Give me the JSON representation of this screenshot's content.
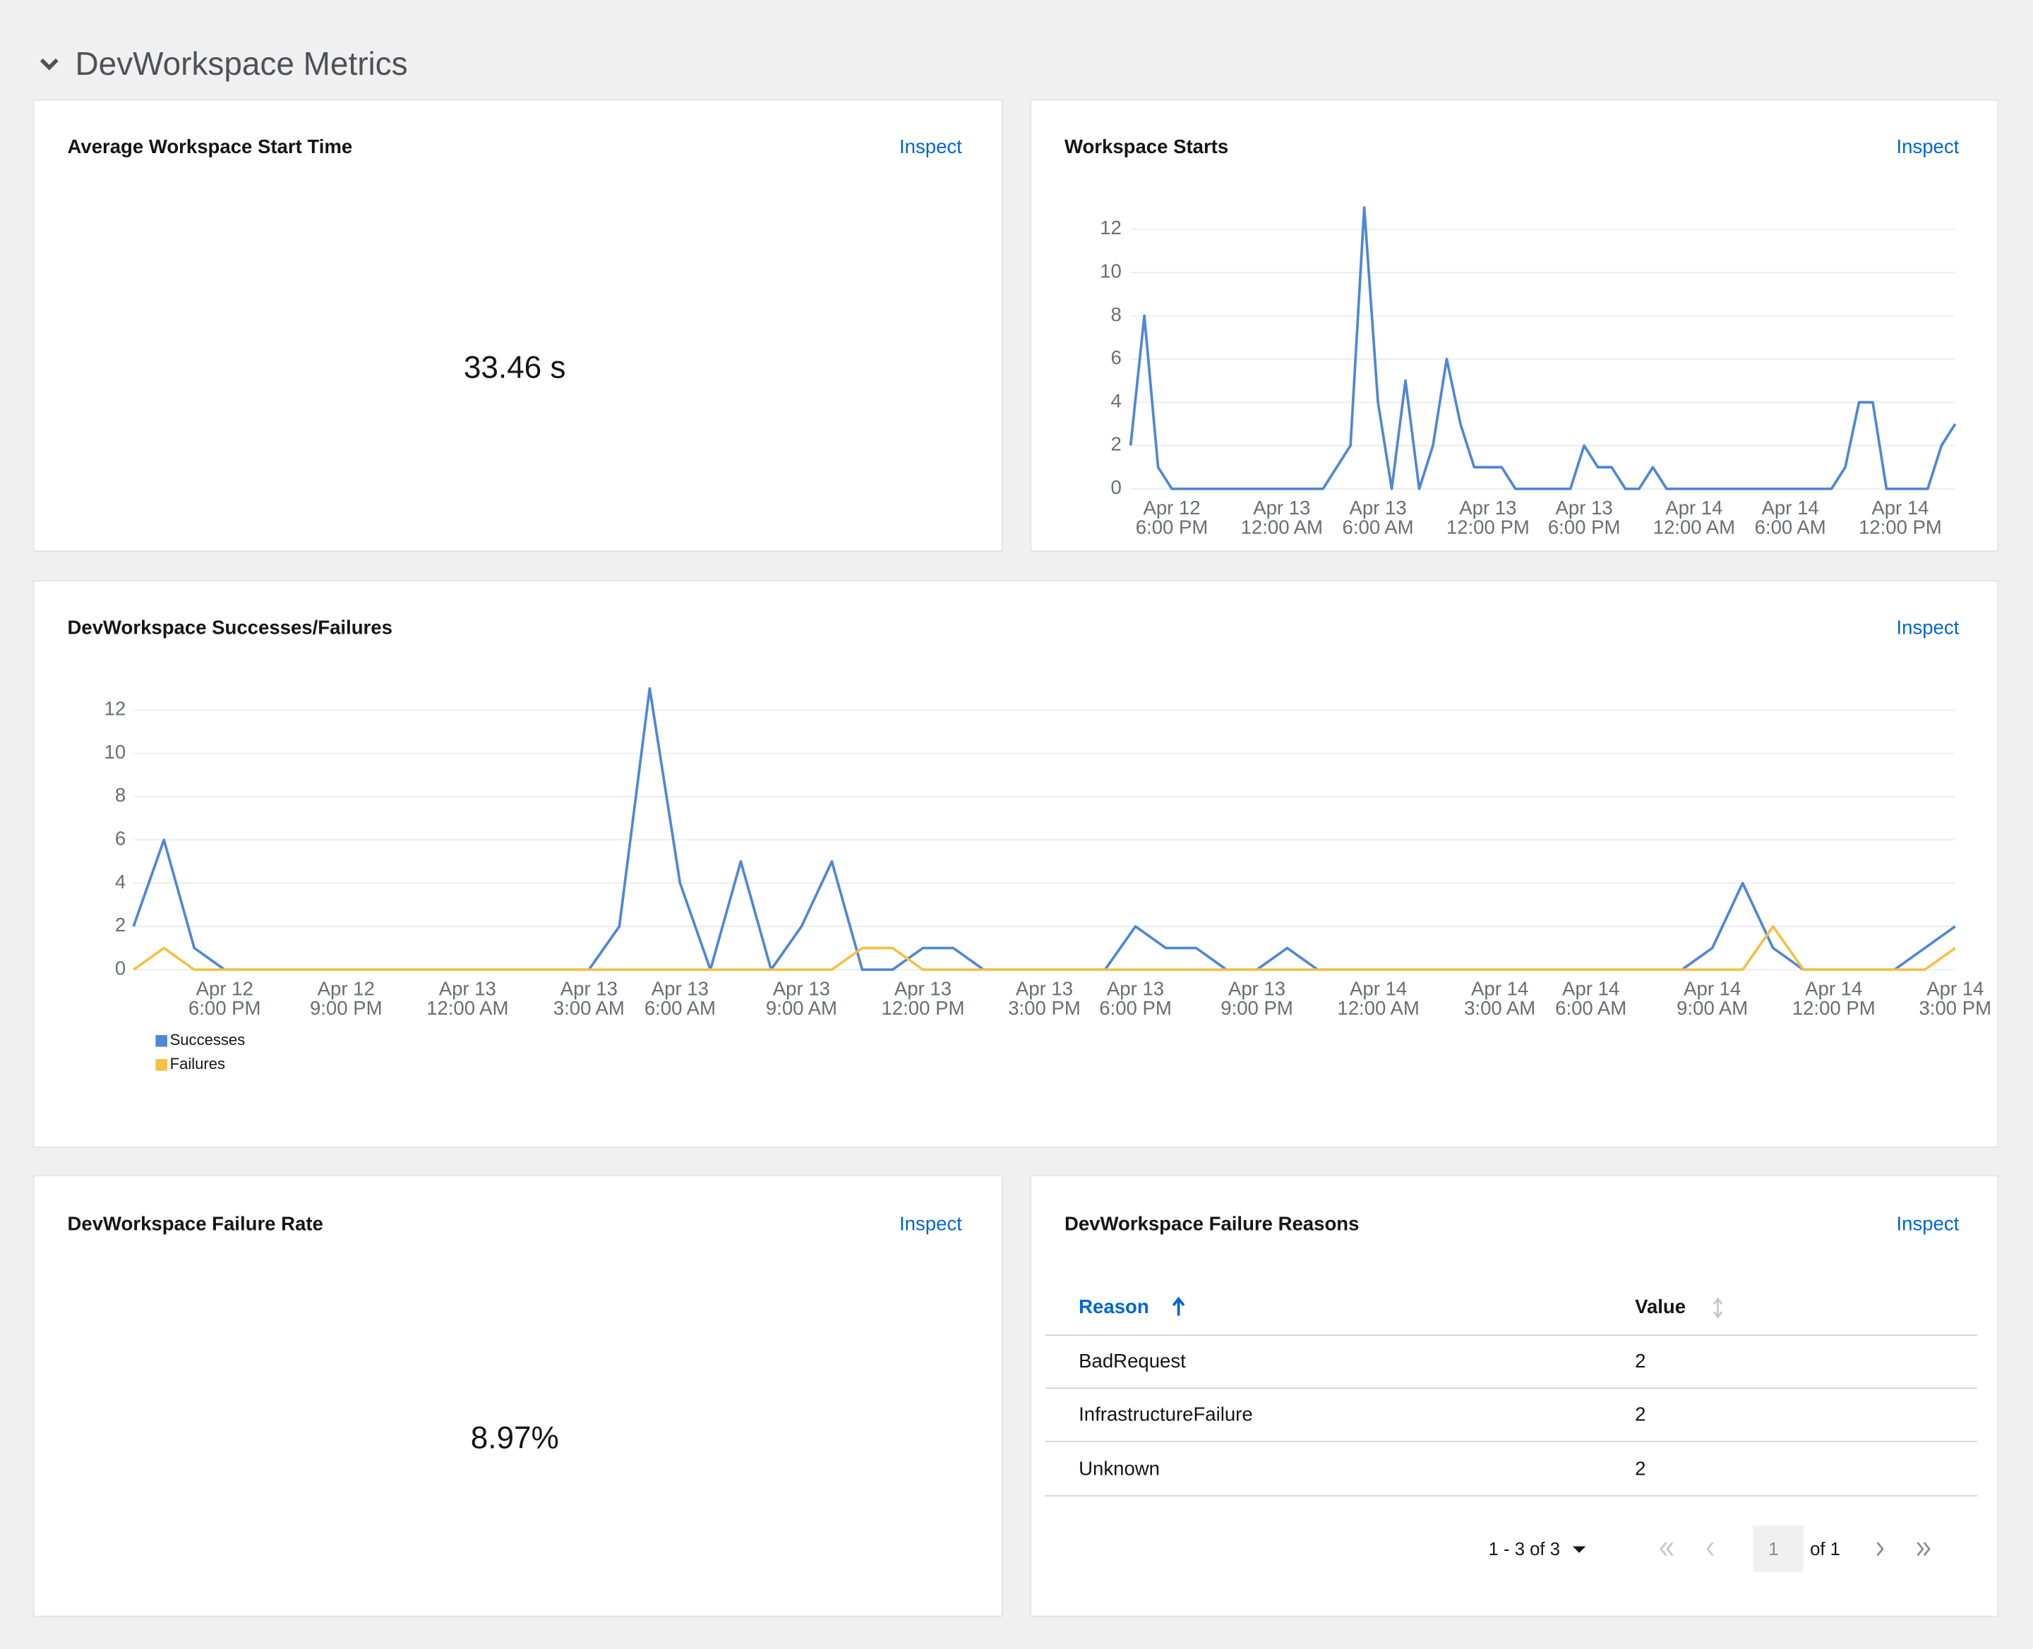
{
  "section_title": "DevWorkspace Metrics",
  "start_time": {
    "title": "Average Workspace Start Time",
    "action": "Inspect",
    "value": "33.46 s"
  },
  "chart_data": [
    {
      "type": "line",
      "title": "Workspace Starts",
      "action": "Inspect",
      "categories": [
        null,
        null,
        null,
        [
          "Apr 12",
          "6:00 PM"
        ],
        null,
        null,
        null,
        null,
        null,
        null,
        null,
        [
          "Apr 13",
          "12:00 AM"
        ],
        null,
        null,
        null,
        null,
        null,
        null,
        [
          "Apr 13",
          "6:00 AM"
        ],
        null,
        null,
        null,
        null,
        null,
        null,
        null,
        [
          "Apr 13",
          "12:00 PM"
        ],
        null,
        null,
        null,
        null,
        null,
        null,
        [
          "Apr 13",
          "6:00 PM"
        ],
        null,
        null,
        null,
        null,
        null,
        null,
        null,
        [
          "Apr 14",
          "12:00 AM"
        ],
        null,
        null,
        null,
        null,
        null,
        null,
        [
          "Apr 14",
          "6:00 AM"
        ],
        null,
        null,
        null,
        null,
        null,
        null,
        null,
        [
          "Apr 14",
          "12:00 PM"
        ],
        null,
        null,
        null,
        null
      ],
      "values": [
        2,
        8,
        1,
        0,
        0,
        0,
        0,
        0,
        0,
        0,
        0,
        0,
        0,
        0,
        0,
        1,
        2,
        13,
        4,
        0,
        5,
        0,
        2,
        6,
        3,
        1,
        1,
        1,
        0,
        0,
        0,
        0,
        0,
        2,
        1,
        1,
        0,
        0,
        1,
        0,
        0,
        0,
        0,
        0,
        0,
        0,
        0,
        0,
        0,
        0,
        0,
        0,
        1,
        4,
        4,
        0,
        0,
        0,
        0,
        2,
        3
      ],
      "color": "#4f87d6",
      "ylim": [
        0,
        13
      ],
      "yticks": [
        0,
        2,
        4,
        6,
        8,
        10,
        12
      ],
      "grid": true
    },
    {
      "type": "line",
      "title": "DevWorkspace Successes/Failures",
      "action": "Inspect",
      "categories": [
        null,
        null,
        null,
        [
          "Apr 12",
          "6:00 PM"
        ],
        null,
        null,
        null,
        [
          "Apr 12",
          "9:00 PM"
        ],
        null,
        null,
        null,
        [
          "Apr 13",
          "12:00 AM"
        ],
        null,
        null,
        null,
        [
          "Apr 13",
          "3:00 AM"
        ],
        null,
        null,
        [
          "Apr 13",
          "6:00 AM"
        ],
        null,
        null,
        null,
        [
          "Apr 13",
          "9:00 AM"
        ],
        null,
        null,
        null,
        [
          "Apr 13",
          "12:00 PM"
        ],
        null,
        null,
        null,
        [
          "Apr 13",
          "3:00 PM"
        ],
        null,
        null,
        [
          "Apr 13",
          "6:00 PM"
        ],
        null,
        null,
        null,
        [
          "Apr 13",
          "9:00 PM"
        ],
        null,
        null,
        null,
        [
          "Apr 14",
          "12:00 AM"
        ],
        null,
        null,
        null,
        [
          "Apr 14",
          "3:00 AM"
        ],
        null,
        null,
        [
          "Apr 14",
          "6:00 AM"
        ],
        null,
        null,
        null,
        [
          "Apr 14",
          "9:00 AM"
        ],
        null,
        null,
        null,
        [
          "Apr 14",
          "12:00 PM"
        ],
        null,
        null,
        null,
        [
          "Apr 14",
          "3:00 PM"
        ]
      ],
      "series": [
        {
          "name": "Successes",
          "color": "#4f87d6",
          "values": [
            2,
            6,
            1,
            0,
            0,
            0,
            0,
            0,
            0,
            0,
            0,
            0,
            0,
            0,
            0,
            0,
            2,
            13,
            4,
            0,
            5,
            0,
            2,
            5,
            0,
            0,
            1,
            1,
            0,
            0,
            0,
            0,
            0,
            2,
            1,
            1,
            0,
            0,
            1,
            0,
            0,
            0,
            0,
            0,
            0,
            0,
            0,
            0,
            0,
            0,
            0,
            0,
            1,
            4,
            1,
            0,
            0,
            0,
            0,
            1,
            2
          ]
        },
        {
          "name": "Failures",
          "color": "#f4c145",
          "values": [
            0,
            1,
            0,
            0,
            0,
            0,
            0,
            0,
            0,
            0,
            0,
            0,
            0,
            0,
            0,
            0,
            0,
            0,
            0,
            0,
            0,
            0,
            0,
            0,
            1,
            1,
            0,
            0,
            0,
            0,
            0,
            0,
            0,
            0,
            0,
            0,
            0,
            0,
            0,
            0,
            0,
            0,
            0,
            0,
            0,
            0,
            0,
            0,
            0,
            0,
            0,
            0,
            0,
            0,
            2,
            0,
            0,
            0,
            0,
            0,
            1
          ]
        }
      ],
      "ylim": [
        0,
        13
      ],
      "yticks": [
        0,
        2,
        4,
        6,
        8,
        10,
        12
      ],
      "grid": true,
      "legend": "bottom-left"
    }
  ],
  "failure_rate": {
    "title": "DevWorkspace Failure Rate",
    "action": "Inspect",
    "value": "8.97%"
  },
  "failure_reasons": {
    "title": "DevWorkspace Failure Reasons",
    "action": "Inspect",
    "table": {
      "columns": [
        "Reason",
        "Value"
      ],
      "rows": [
        [
          "BadRequest",
          2
        ],
        [
          "InfrastructureFailure",
          2
        ],
        [
          "Unknown",
          2
        ]
      ]
    },
    "pagination": {
      "range": "1 - 3 of 3",
      "page": "1",
      "total": "of 1"
    }
  }
}
